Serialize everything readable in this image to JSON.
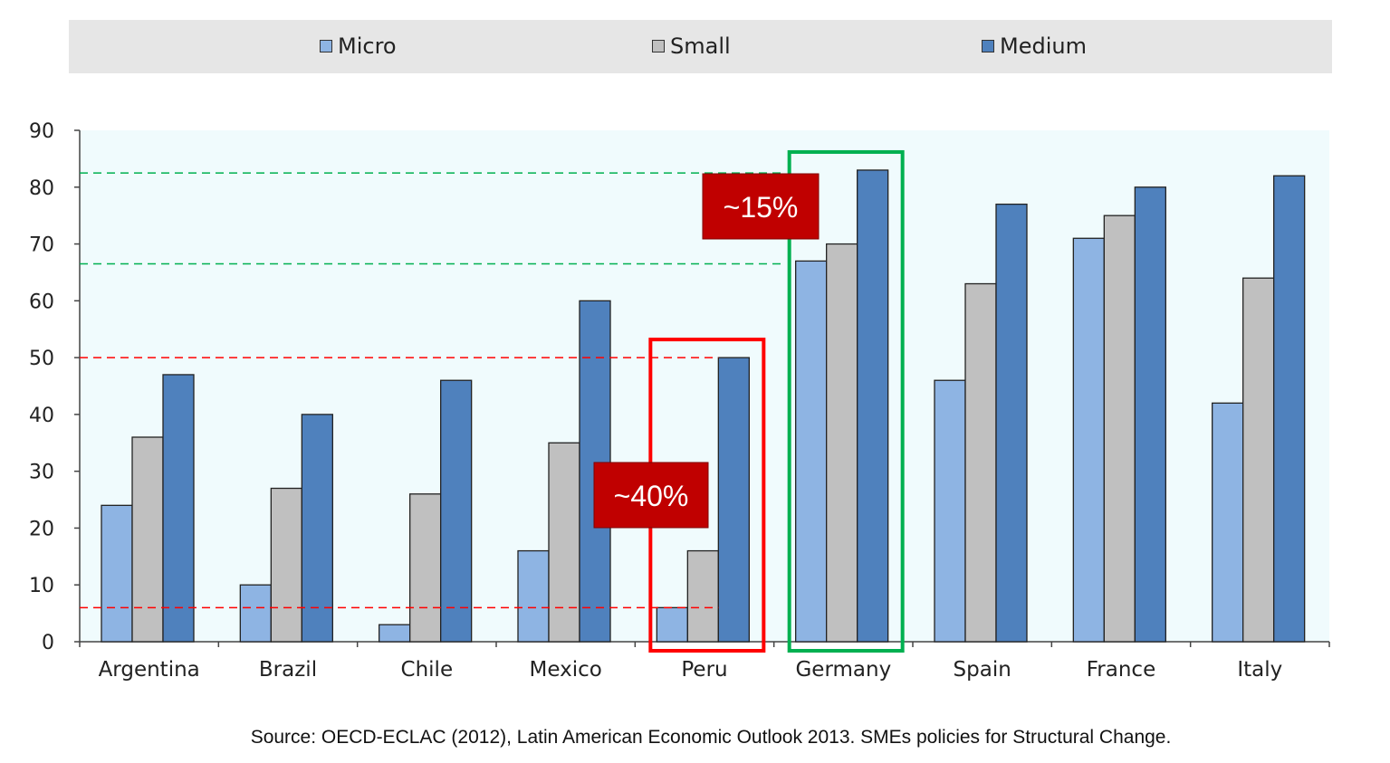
{
  "chart_data": {
    "type": "bar",
    "categories": [
      "Argentina",
      "Brazil",
      "Chile",
      "Mexico",
      "Peru",
      "Germany",
      "Spain",
      "France",
      "Italy"
    ],
    "series": [
      {
        "name": "Micro",
        "color": "#8eb4e3",
        "values": [
          24,
          10,
          3,
          16,
          6,
          67,
          46,
          71,
          42
        ]
      },
      {
        "name": "Small",
        "color": "#c0c0c0",
        "values": [
          36,
          27,
          26,
          35,
          16,
          70,
          63,
          75,
          64
        ]
      },
      {
        "name": "Medium",
        "color": "#4f81bd",
        "values": [
          47,
          40,
          46,
          60,
          50,
          83,
          77,
          80,
          82
        ]
      }
    ],
    "ylim": [
      0,
      90
    ],
    "yticks": [
      0,
      10,
      20,
      30,
      40,
      50,
      60,
      70,
      80,
      90
    ],
    "legend_position": "top",
    "plot_background": "#f0fbfd",
    "reference_lines": [
      {
        "value": 82.5,
        "color": "#00b050",
        "x_from_category": "Argentina",
        "x_to_category": "Germany"
      },
      {
        "value": 66.5,
        "color": "#00b050",
        "x_from_category": "Argentina",
        "x_to_category": "Germany"
      },
      {
        "value": 50,
        "color": "#ff0000",
        "x_from_category": "Argentina",
        "x_to_category": "Peru"
      },
      {
        "value": 6,
        "color": "#ff0000",
        "x_from_category": "Argentina",
        "x_to_category": "Peru"
      }
    ],
    "highlights": [
      {
        "category": "Peru",
        "color": "#ff0000"
      },
      {
        "category": "Germany",
        "color": "#00b050"
      }
    ],
    "annotations": [
      {
        "text": "~15%",
        "background": "#c00000"
      },
      {
        "text": "~40%",
        "background": "#c00000"
      }
    ],
    "source": "Source: OECD-ECLAC (2012), Latin American Economic Outlook 2013. SMEs policies for Structural Change."
  }
}
